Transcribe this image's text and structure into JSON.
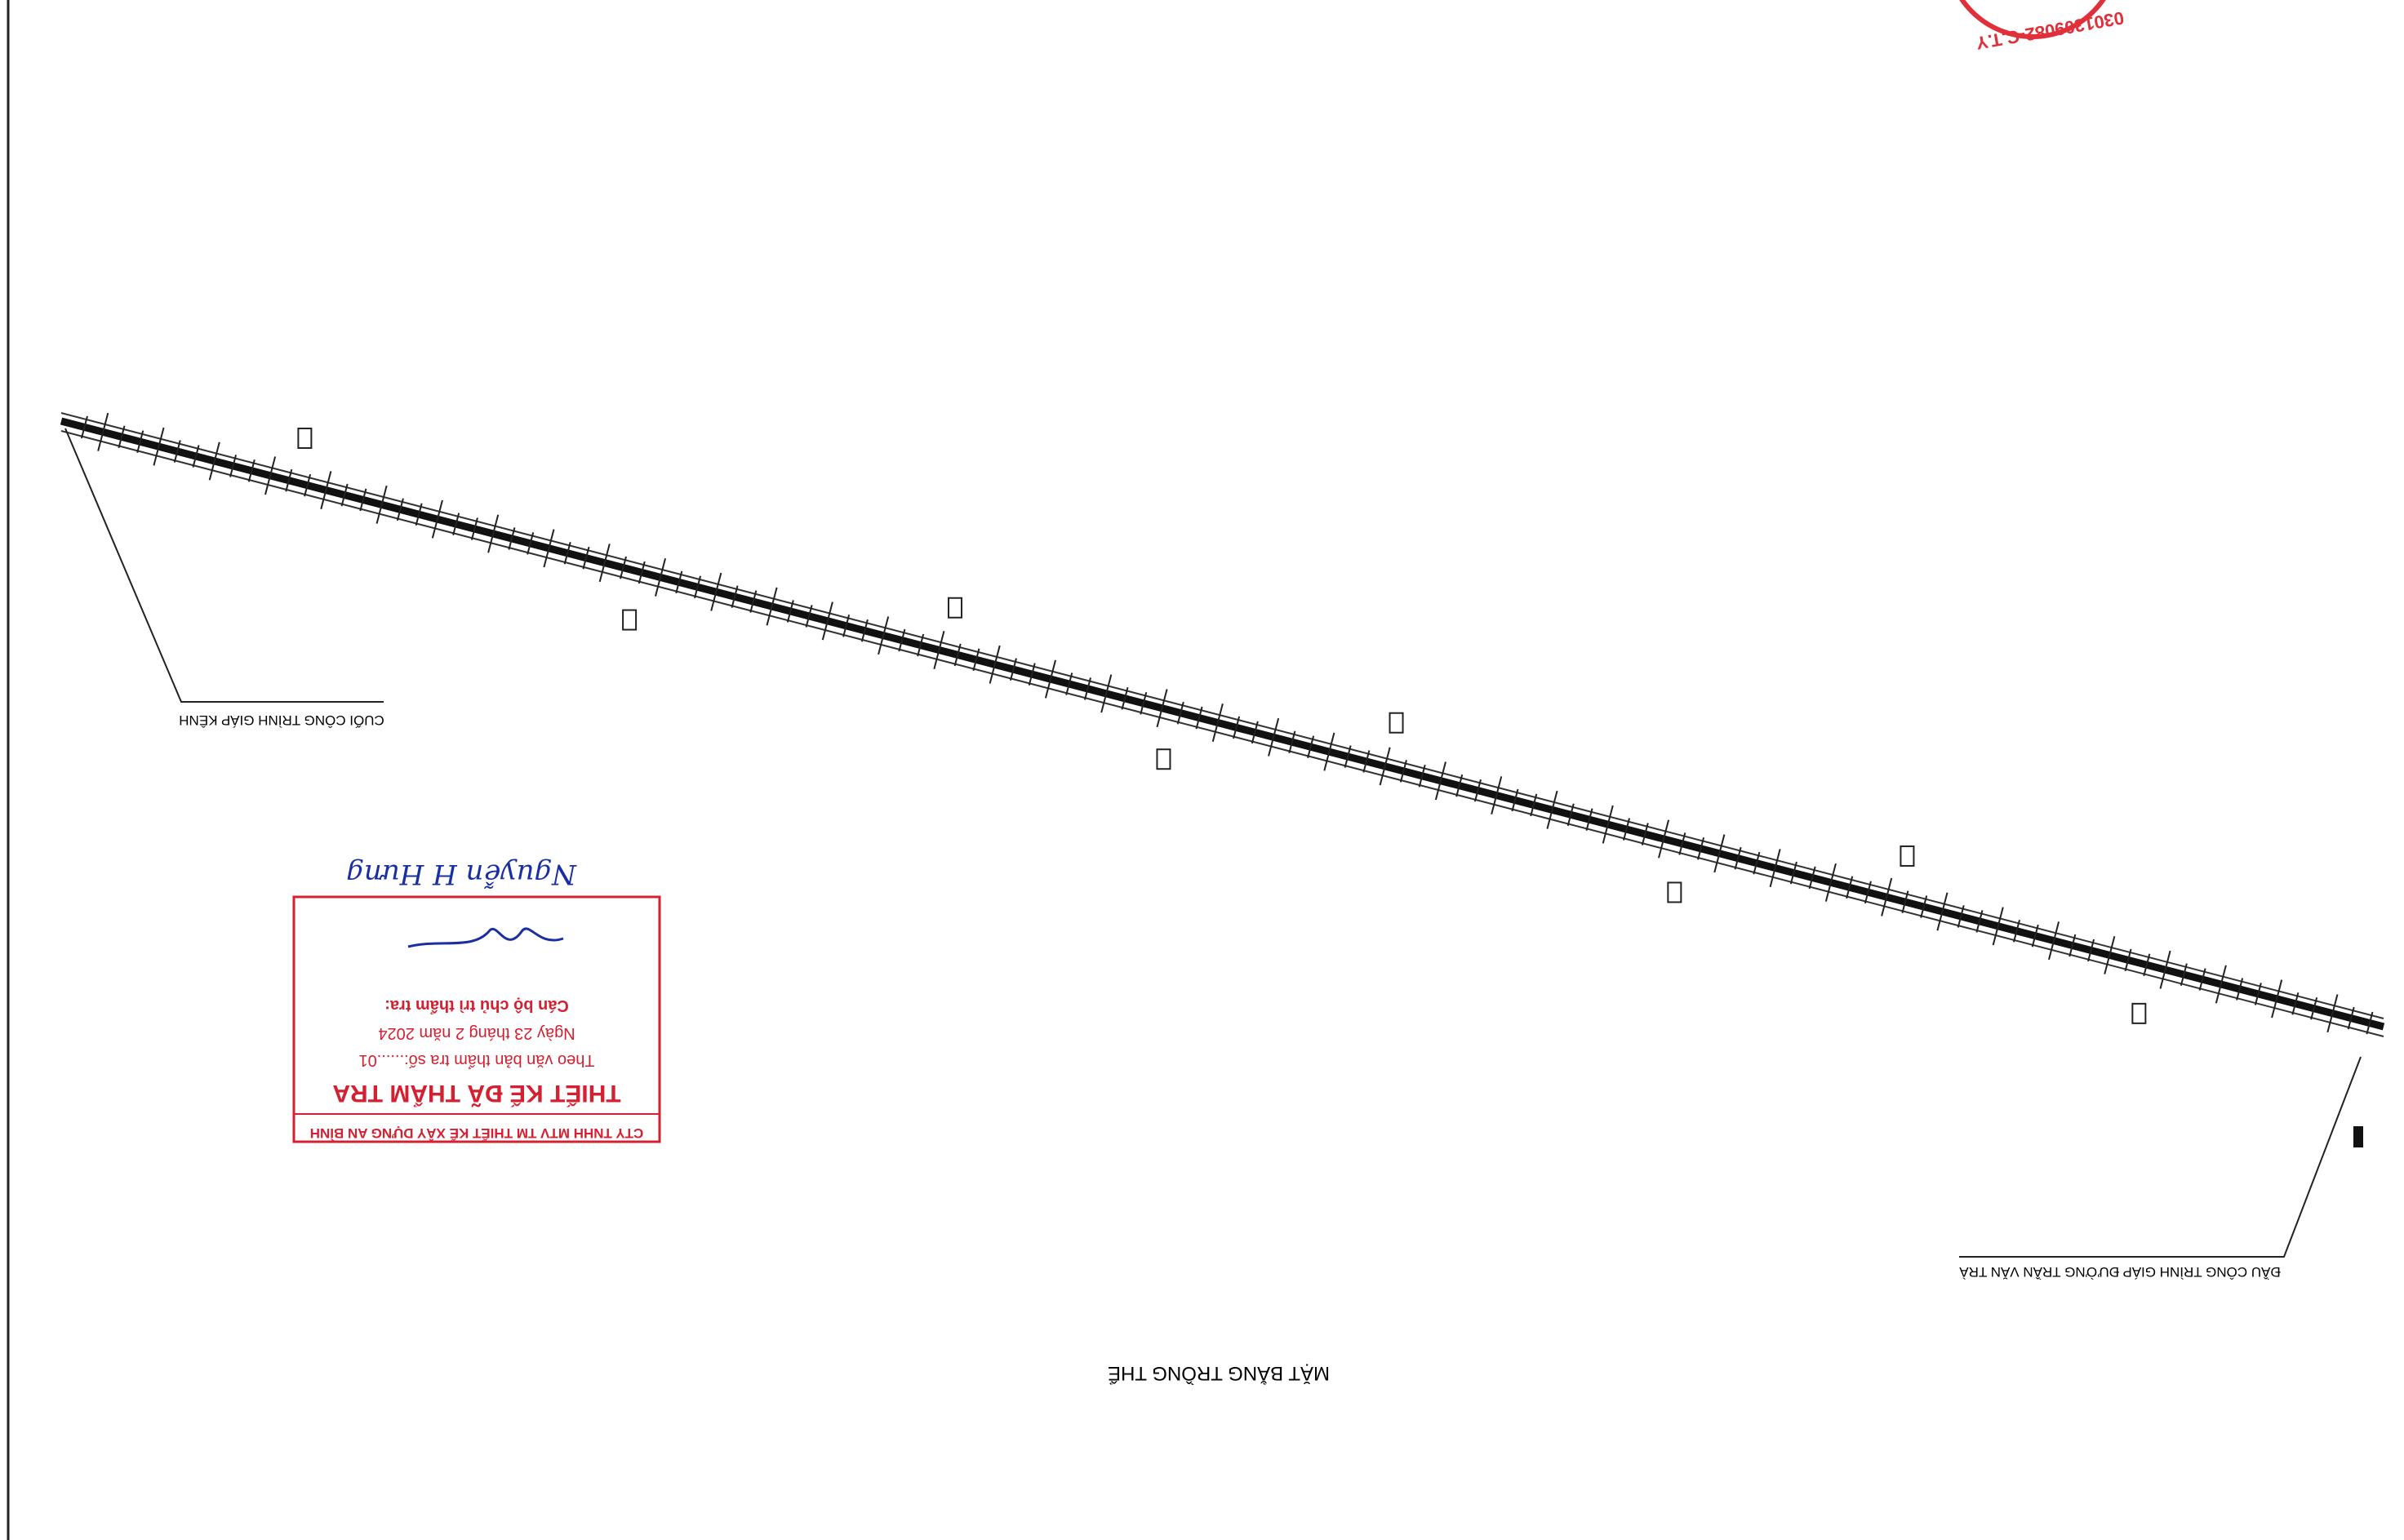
{
  "drawing": {
    "title": "MẶT BẰNG TRỒNG THỂ",
    "start_label": "CUỐI CÔNG TRÌNH GIÁP KÊNH",
    "end_label": "ĐẦU CÔNG TRÌNH GIÁP ĐƯỜNG TRẦN VĂN TRÀ"
  },
  "stamp": {
    "company": "CTY TNHH MTV TM THIẾT KẾ XÂY DỰNG AN BÌNH",
    "heading": "THIẾT KẾ ĐÃ THẨM TRA",
    "document_line": "Theo văn bản thẩm tra số:......01",
    "date_line": "Ngày 23 tháng 2 năm 2024",
    "officer_line": "Cán bộ chủ trì thẩm tra:",
    "officer_name": "Nguyễn H Hưng"
  },
  "seal": {
    "text": "0301309082-C.T.Y"
  }
}
